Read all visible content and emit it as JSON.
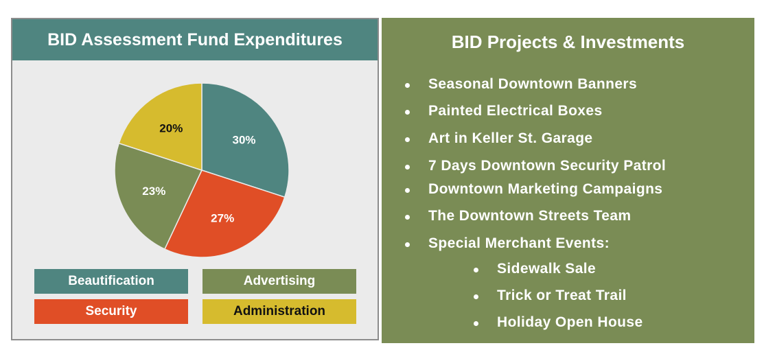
{
  "left_panel": {
    "title": "BID Assessment Fund Expenditures"
  },
  "chart_data": {
    "type": "pie",
    "title": "BID Assessment Fund Expenditures",
    "slices": [
      {
        "label": "Beautification",
        "value": 30,
        "display": "30%",
        "color": "#4f8580",
        "text_color": "#ffffff"
      },
      {
        "label": "Security",
        "value": 27,
        "display": "27%",
        "color": "#e04e26",
        "text_color": "#ffffff"
      },
      {
        "label": "Advertising",
        "value": 23,
        "display": "23%",
        "color": "#7a8c55",
        "text_color": "#ffffff"
      },
      {
        "label": "Administration",
        "value": 20,
        "display": "20%",
        "color": "#d6bb2e",
        "text_color": "#111111"
      }
    ],
    "legend_placement": "bottom"
  },
  "legend": [
    {
      "label": "Beautification",
      "color": "#4f8580",
      "text_color": "#ffffff"
    },
    {
      "label": "Advertising",
      "color": "#7a8c55",
      "text_color": "#ffffff"
    },
    {
      "label": "Security",
      "color": "#e04e26",
      "text_color": "#ffffff"
    },
    {
      "label": "Administration",
      "color": "#d6bb2e",
      "text_color": "#111111"
    }
  ],
  "right_panel": {
    "title": "BID Projects & Investments",
    "items": [
      {
        "text": "Seasonal Downtown Banners",
        "level": 1
      },
      {
        "text": "Painted Electrical Boxes",
        "level": 1
      },
      {
        "text": "Art in Keller St. Garage",
        "level": 1
      },
      {
        "text": "7 Days Downtown Security Patrol",
        "level": 1
      },
      {
        "text": "Downtown Marketing Campaigns",
        "level": 1
      },
      {
        "text": "The Downtown Streets Team",
        "level": 1
      },
      {
        "text": "Special Merchant Events:",
        "level": 1
      },
      {
        "text": "Sidewalk Sale",
        "level": 2
      },
      {
        "text": "Trick or Treat Trail",
        "level": 2
      },
      {
        "text": "Holiday Open House",
        "level": 2
      }
    ]
  }
}
